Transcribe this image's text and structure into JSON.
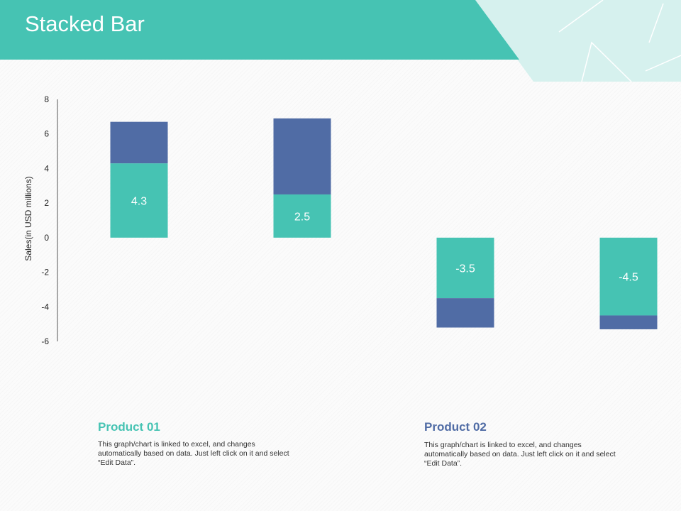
{
  "slide": {
    "title": "Stacked Bar"
  },
  "colors": {
    "teal": "#46c3b3",
    "blue": "#506ca5",
    "light_teal": "#d6f1ee"
  },
  "chart_data": {
    "type": "bar",
    "stacked": true,
    "ylabel": "Sales(in USD millions)",
    "ylim": [
      -6,
      8
    ],
    "yticks": [
      8,
      6,
      4,
      2,
      0,
      -2,
      -4,
      -6
    ],
    "grid": false,
    "bars": [
      {
        "segments": [
          {
            "value": 4.3,
            "color": "#46c3b3",
            "label": "4.3"
          },
          {
            "value": 2.4,
            "color": "#506ca5"
          }
        ]
      },
      {
        "segments": [
          {
            "value": 2.5,
            "color": "#46c3b3",
            "label": "2.5"
          },
          {
            "value": 4.4,
            "color": "#506ca5"
          }
        ]
      },
      {
        "segments": [
          {
            "value": -3.5,
            "color": "#46c3b3",
            "label": "-3.5"
          },
          {
            "value": -1.7,
            "color": "#506ca5"
          }
        ]
      },
      {
        "segments": [
          {
            "value": -4.5,
            "color": "#46c3b3",
            "label": "-4.5"
          },
          {
            "value": -0.8,
            "color": "#506ca5"
          }
        ]
      }
    ]
  },
  "legend": [
    {
      "title": "Product 01",
      "color": "#46c3b3",
      "description": "This graph/chart is linked to excel, and changes automatically based on data. Just left click on it and select “Edit Data”."
    },
    {
      "title": "Product 02",
      "color": "#506ca5",
      "description": "This graph/chart is linked to excel, and changes automatically based on data. Just left click on it and select “Edit Data”."
    }
  ]
}
